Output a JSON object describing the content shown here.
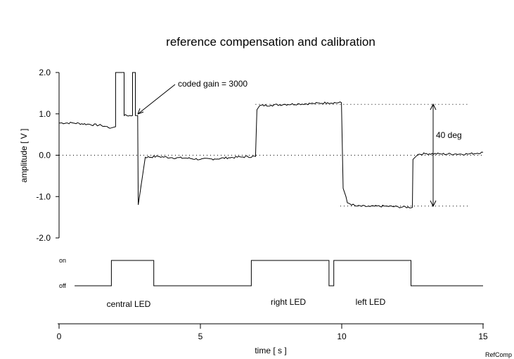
{
  "chart_data": {
    "type": "line",
    "title": "reference compensation and calibration",
    "xlabel": "time [ s ]",
    "ylabel": "amplitude [ V ]",
    "xlim": [
      0,
      15
    ],
    "ylim": [
      -2.0,
      2.0
    ],
    "x_ticks": [
      0,
      5,
      10,
      15
    ],
    "x_tick_labels": [
      "0",
      "5",
      "10",
      "15"
    ],
    "y_ticks": [
      2.0,
      1.0,
      0.0,
      -1.0,
      -2.0
    ],
    "y_tick_labels": [
      "2.0",
      "1.0",
      "0.0",
      "-1.0",
      "-2.0"
    ],
    "grid": false,
    "reference_lines": [
      0.0,
      1.23,
      -1.23
    ],
    "series": [
      {
        "name": "",
        "points": [
          [
            0,
            0.78
          ],
          [
            0.5,
            0.78
          ],
          [
            1.0,
            0.75
          ],
          [
            1.5,
            0.72
          ],
          [
            1.85,
            0.66
          ],
          [
            2.0,
            0.69
          ],
          [
            2.0,
            2.0
          ],
          [
            2.3,
            2.0
          ],
          [
            2.3,
            0.96
          ],
          [
            2.6,
            0.96
          ],
          [
            2.6,
            2.0
          ],
          [
            2.7,
            2.0
          ],
          [
            2.7,
            0.96
          ],
          [
            2.78,
            0.96
          ],
          [
            2.8,
            -1.2
          ],
          [
            3.05,
            -0.05
          ],
          [
            3.5,
            -0.03
          ],
          [
            4.0,
            -0.06
          ],
          [
            4.5,
            -0.07
          ],
          [
            5.0,
            -0.1
          ],
          [
            5.5,
            -0.09
          ],
          [
            6.0,
            -0.06
          ],
          [
            6.5,
            -0.04
          ],
          [
            6.95,
            -0.03
          ],
          [
            7.0,
            1.1
          ],
          [
            7.1,
            1.2
          ],
          [
            7.5,
            1.21
          ],
          [
            8.0,
            1.23
          ],
          [
            8.5,
            1.24
          ],
          [
            9.0,
            1.25
          ],
          [
            9.5,
            1.27
          ],
          [
            9.99,
            1.27
          ],
          [
            10.05,
            -0.8
          ],
          [
            10.15,
            -1.0
          ],
          [
            10.2,
            -1.15
          ],
          [
            10.5,
            -1.23
          ],
          [
            11.0,
            -1.24
          ],
          [
            11.5,
            -1.23
          ],
          [
            12.0,
            -1.25
          ],
          [
            12.5,
            -1.26
          ],
          [
            12.52,
            -0.1
          ],
          [
            12.7,
            0.02
          ],
          [
            13.0,
            0.04
          ],
          [
            13.5,
            0.03
          ],
          [
            14.0,
            0.03
          ],
          [
            14.5,
            0.03
          ],
          [
            15.0,
            0.07
          ]
        ]
      },
      {
        "name": "LED",
        "levels": [
          "off",
          "on"
        ],
        "points": [
          [
            0.55,
            0
          ],
          [
            1.85,
            0
          ],
          [
            1.85,
            1
          ],
          [
            3.35,
            1
          ],
          [
            3.35,
            0
          ],
          [
            6.8,
            0
          ],
          [
            6.8,
            1
          ],
          [
            9.55,
            1
          ],
          [
            9.55,
            0
          ],
          [
            9.72,
            0
          ],
          [
            9.72,
            1
          ],
          [
            12.45,
            1
          ],
          [
            12.45,
            0
          ],
          [
            15.0,
            0
          ]
        ]
      }
    ],
    "led_levels": [
      "on",
      "off"
    ],
    "annotations": [
      {
        "text": "coded gain = 3000",
        "x": 4.3,
        "y": 1.7,
        "arrow_to": [
          2.8,
          0.96
        ]
      },
      {
        "text": "40 deg",
        "x": 13.35,
        "y": 0.45
      }
    ],
    "led_labels": [
      {
        "text": "central LED",
        "x": 2.5
      },
      {
        "text": "right LED",
        "x": 8.2
      },
      {
        "text": "left LED",
        "x": 11.0
      }
    ],
    "corner_label": "RefComp"
  }
}
